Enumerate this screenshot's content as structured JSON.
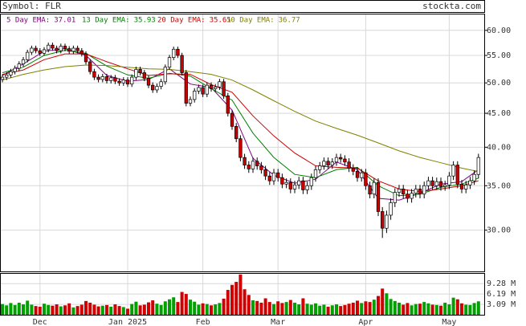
{
  "chart_data": {
    "type": "candlestick",
    "symbol_label": "Symbol: FLR",
    "site": "stockta.com",
    "log_scale": true,
    "grid": true,
    "ylim": [
      26,
      63.4
    ],
    "yticks": [
      {
        "value": 30,
        "label": "30.00"
      },
      {
        "value": 35,
        "label": "35.00"
      },
      {
        "value": 40,
        "label": "40.00"
      },
      {
        "value": 45,
        "label": "45.00"
      },
      {
        "value": 50,
        "label": "50.00"
      },
      {
        "value": 55,
        "label": "55.00"
      },
      {
        "value": 60,
        "label": "60.00"
      }
    ],
    "xticks": [
      {
        "value": 9,
        "label": "Dec"
      },
      {
        "value": 30,
        "label": "Jan 2025"
      },
      {
        "value": 48,
        "label": "Feb"
      },
      {
        "value": 66,
        "label": "Mar"
      },
      {
        "value": 87,
        "label": "Apr"
      },
      {
        "value": 107,
        "label": "May"
      }
    ],
    "up_color": "#ffffff",
    "down_color": "#cc0000",
    "open": [
      50.6,
      51.0,
      51.4,
      52.0,
      52.6,
      53.4,
      54.2,
      55.6,
      56.4,
      55.9,
      55.4,
      56.1,
      57.0,
      56.4,
      55.9,
      56.8,
      56.3,
      55.8,
      56.4,
      55.9,
      55.3,
      53.8,
      52.0,
      51.0,
      50.6,
      51.1,
      50.4,
      50.9,
      50.3,
      50.0,
      50.5,
      49.8,
      51.0,
      52.4,
      51.8,
      50.8,
      49.6,
      48.8,
      49.4,
      50.2,
      52.8,
      54.6,
      56.2,
      55.0,
      51.8,
      46.6,
      47.2,
      48.6,
      49.2,
      48.1,
      49.6,
      49.0,
      49.3,
      50.2,
      47.8,
      45.0,
      43.0,
      41.2,
      38.6,
      37.6,
      37.1,
      38.1,
      37.5,
      37.0,
      36.2,
      35.6,
      36.6,
      36.0,
      35.2,
      35.4,
      34.6,
      35.1,
      35.6,
      34.5,
      35.0,
      36.0,
      37.0,
      37.5,
      38.1,
      37.6,
      38.0,
      38.6,
      38.4,
      38.0,
      37.2,
      36.8,
      36.0,
      36.6,
      35.0,
      34.0,
      35.4,
      32.0,
      30.2,
      31.6,
      33.0,
      34.2,
      34.6,
      34.0,
      33.5,
      34.1,
      34.6,
      34.0,
      35.0,
      35.6,
      35.0,
      35.5,
      34.9,
      35.1,
      36.2,
      37.6,
      35.2,
      34.6,
      35.1,
      35.6,
      36.4
    ],
    "high": [
      51.5,
      51.9,
      52.5,
      53.1,
      53.9,
      54.7,
      56.1,
      56.9,
      56.9,
      56.4,
      56.6,
      57.5,
      57.5,
      56.9,
      57.3,
      57.3,
      56.8,
      56.9,
      56.9,
      56.4,
      55.8,
      54.3,
      52.5,
      51.5,
      51.6,
      51.6,
      51.4,
      51.4,
      50.8,
      51.0,
      51.0,
      51.5,
      52.9,
      52.9,
      52.3,
      51.3,
      50.1,
      49.9,
      50.7,
      53.3,
      55.1,
      56.7,
      56.7,
      55.5,
      52.3,
      47.7,
      49.1,
      49.7,
      49.7,
      50.1,
      50.1,
      49.8,
      50.7,
      50.7,
      48.3,
      45.5,
      43.5,
      41.7,
      39.1,
      38.1,
      38.6,
      38.6,
      38.0,
      37.5,
      36.7,
      37.1,
      37.1,
      36.5,
      35.9,
      35.9,
      35.6,
      36.1,
      36.1,
      35.5,
      36.5,
      37.5,
      38.0,
      38.6,
      38.6,
      38.5,
      39.1,
      39.1,
      38.9,
      38.5,
      37.7,
      37.3,
      37.1,
      37.1,
      35.5,
      35.9,
      35.9,
      32.5,
      32.1,
      33.5,
      34.7,
      35.1,
      35.1,
      34.5,
      34.6,
      35.1,
      35.1,
      35.5,
      36.1,
      36.1,
      36.0,
      36.0,
      35.6,
      36.7,
      38.1,
      38.1,
      35.7,
      35.6,
      36.1,
      36.9,
      39.1
    ],
    "low": [
      50.1,
      50.5,
      50.9,
      51.5,
      52.1,
      52.9,
      53.7,
      55.1,
      55.4,
      54.9,
      54.9,
      55.6,
      55.9,
      55.4,
      55.4,
      55.8,
      55.3,
      55.3,
      55.4,
      54.8,
      53.3,
      51.5,
      50.5,
      50.1,
      50.1,
      49.9,
      49.9,
      49.8,
      49.5,
      49.5,
      49.3,
      49.3,
      50.5,
      51.3,
      50.3,
      49.1,
      48.3,
      48.3,
      48.9,
      49.7,
      52.3,
      54.1,
      54.5,
      51.3,
      46.1,
      46.1,
      46.7,
      48.1,
      47.6,
      47.6,
      48.5,
      48.5,
      48.8,
      47.3,
      44.5,
      42.5,
      40.7,
      38.1,
      37.1,
      36.6,
      36.6,
      37.0,
      36.5,
      35.7,
      35.1,
      35.1,
      35.5,
      34.7,
      34.7,
      34.1,
      34.1,
      34.6,
      34.0,
      34.0,
      34.5,
      35.5,
      36.5,
      37.0,
      37.1,
      37.1,
      37.5,
      37.9,
      37.5,
      36.7,
      36.3,
      35.5,
      35.5,
      34.5,
      33.5,
      33.5,
      31.5,
      29.2,
      29.7,
      31.1,
      32.5,
      33.7,
      33.5,
      33.0,
      33.0,
      33.6,
      33.5,
      33.5,
      34.5,
      34.5,
      34.5,
      34.4,
      34.4,
      34.6,
      35.7,
      34.7,
      34.1,
      34.1,
      34.6,
      35.1,
      35.9
    ],
    "close": [
      51.0,
      51.4,
      52.0,
      52.6,
      53.4,
      54.2,
      55.6,
      56.4,
      55.9,
      55.4,
      56.1,
      57.0,
      56.4,
      55.9,
      56.8,
      56.3,
      55.8,
      56.4,
      55.9,
      55.3,
      53.8,
      52.0,
      51.0,
      50.6,
      51.1,
      50.4,
      50.9,
      50.3,
      50.0,
      50.5,
      49.8,
      51.0,
      52.4,
      51.8,
      50.8,
      49.6,
      48.8,
      49.4,
      50.2,
      52.8,
      54.6,
      56.2,
      55.0,
      51.8,
      46.6,
      47.2,
      48.6,
      49.2,
      48.1,
      49.6,
      49.0,
      49.3,
      50.2,
      47.8,
      45.0,
      43.0,
      41.2,
      38.6,
      37.6,
      37.1,
      38.1,
      37.5,
      37.0,
      36.2,
      35.6,
      36.6,
      36.0,
      35.2,
      35.4,
      34.6,
      35.1,
      35.6,
      34.5,
      35.0,
      36.0,
      37.0,
      37.5,
      38.1,
      37.6,
      38.0,
      38.6,
      38.4,
      38.0,
      37.2,
      36.8,
      36.0,
      36.6,
      35.0,
      34.0,
      35.4,
      32.0,
      30.2,
      31.6,
      33.0,
      34.2,
      34.6,
      34.0,
      33.5,
      34.1,
      34.6,
      34.0,
      35.0,
      35.6,
      35.0,
      35.5,
      34.9,
      35.1,
      36.2,
      37.6,
      35.2,
      34.6,
      35.1,
      35.6,
      36.4,
      38.6
    ],
    "ema_x": [
      0,
      5,
      10,
      15,
      20,
      25,
      30,
      35,
      40,
      45,
      50,
      55,
      60,
      65,
      70,
      75,
      80,
      85,
      90,
      95,
      100,
      105,
      110,
      114
    ],
    "series": [
      {
        "name": "5 Day EMA:",
        "last": 37.01,
        "color": "#800080",
        "values": [
          51.3,
          53.4,
          55.8,
          56.3,
          55.0,
          51.3,
          50.3,
          50.6,
          52.5,
          49.8,
          49.2,
          45.5,
          38.5,
          36.3,
          35.3,
          35.8,
          38.0,
          37.0,
          33.5,
          33.3,
          34.1,
          35.2,
          35.5,
          37.01
        ]
      },
      {
        "name": "13 Day EMA:",
        "last": 35.93,
        "color": "#008000",
        "values": [
          51.8,
          52.8,
          55.0,
          56.0,
          55.4,
          53.0,
          51.4,
          50.8,
          51.7,
          51.2,
          49.0,
          47.1,
          42.0,
          38.6,
          36.4,
          36.0,
          37.0,
          37.3,
          35.0,
          33.8,
          34.0,
          34.8,
          35.2,
          35.93
        ]
      },
      {
        "name": "20 Day EMA:",
        "last": 35.61,
        "color": "#cc0000",
        "values": [
          51.5,
          52.3,
          54.2,
          55.3,
          55.3,
          53.8,
          52.5,
          51.3,
          51.6,
          51.5,
          49.7,
          48.4,
          44.6,
          41.6,
          39.2,
          37.5,
          37.3,
          37.2,
          35.6,
          34.6,
          34.3,
          34.6,
          35.0,
          35.61
        ]
      },
      {
        "name": "50 Day EMA:",
        "last": 36.77,
        "color": "#808000",
        "values": [
          50.5,
          51.5,
          52.3,
          52.9,
          53.2,
          53.1,
          52.8,
          52.5,
          52.4,
          52.0,
          51.5,
          50.5,
          48.8,
          47.0,
          45.3,
          43.8,
          42.7,
          41.7,
          40.6,
          39.5,
          38.6,
          37.9,
          37.2,
          36.77
        ]
      }
    ],
    "volume": [
      3.2,
      2.8,
      3.5,
      2.9,
      3.6,
      3.1,
      4.2,
      3.0,
      2.6,
      2.4,
      3.3,
      2.9,
      2.7,
      3.1,
      2.5,
      2.8,
      3.4,
      2.2,
      2.6,
      3.0,
      4.1,
      3.6,
      3.0,
      2.5,
      2.7,
      2.9,
      2.4,
      3.1,
      2.6,
      2.3,
      1.8,
      3.2,
      3.9,
      2.8,
      3.0,
      3.7,
      4.3,
      3.3,
      2.9,
      4.0,
      4.6,
      5.2,
      3.8,
      6.8,
      6.2,
      4.5,
      3.9,
      3.0,
      3.4,
      3.2,
      2.8,
      3.1,
      3.5,
      4.8,
      7.4,
      8.9,
      9.8,
      12.0,
      7.6,
      5.9,
      4.3,
      4.1,
      3.6,
      4.9,
      3.8,
      3.2,
      4.0,
      3.5,
      3.8,
      4.4,
      3.6,
      3.1,
      4.9,
      3.3,
      3.0,
      3.4,
      2.7,
      3.0,
      2.4,
      2.8,
      3.1,
      2.6,
      2.9,
      3.3,
      3.6,
      4.2,
      3.5,
      4.0,
      3.8,
      4.5,
      5.6,
      7.8,
      6.4,
      4.7,
      4.1,
      3.6,
      3.0,
      3.5,
      2.8,
      3.2,
      3.3,
      3.8,
      3.4,
      3.0,
      2.9,
      2.7,
      3.6,
      3.1,
      5.1,
      4.6,
      3.4,
      3.0,
      2.9,
      3.5,
      4.0
    ],
    "volume_up_color": "#00a000",
    "volume_down_color": "#d00000",
    "vlim": [
      0,
      12.2
    ],
    "vticks": [
      {
        "value": 3.09,
        "label": "3.09 M"
      },
      {
        "value": 6.19,
        "label": "6.19 M"
      },
      {
        "value": 9.28,
        "label": "9.28 M"
      }
    ]
  }
}
